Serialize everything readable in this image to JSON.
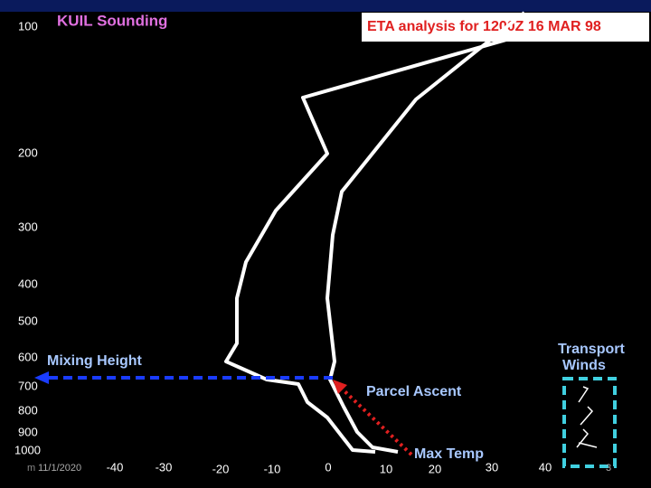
{
  "header": {
    "title": "KUIL Sounding",
    "analysis": "ETA analysis for 1200Z 16 MAR 98"
  },
  "pressure_labels": [
    "100",
    "200",
    "300",
    "400",
    "500",
    "600",
    "700",
    "800",
    "900",
    "1000"
  ],
  "temperature_labels": [
    "-40",
    "-30",
    "-20",
    "-10",
    "0",
    "10",
    "20",
    "30",
    "40"
  ],
  "annotations": {
    "mixing_height": "Mixing Height",
    "parcel_ascent": "Parcel Ascent",
    "max_temp": "Max Temp",
    "transport_winds_1": "Transport",
    "transport_winds_2": "Winds"
  },
  "footer": {
    "mark": "m",
    "date": "11/1/2020",
    "page": "3"
  }
}
